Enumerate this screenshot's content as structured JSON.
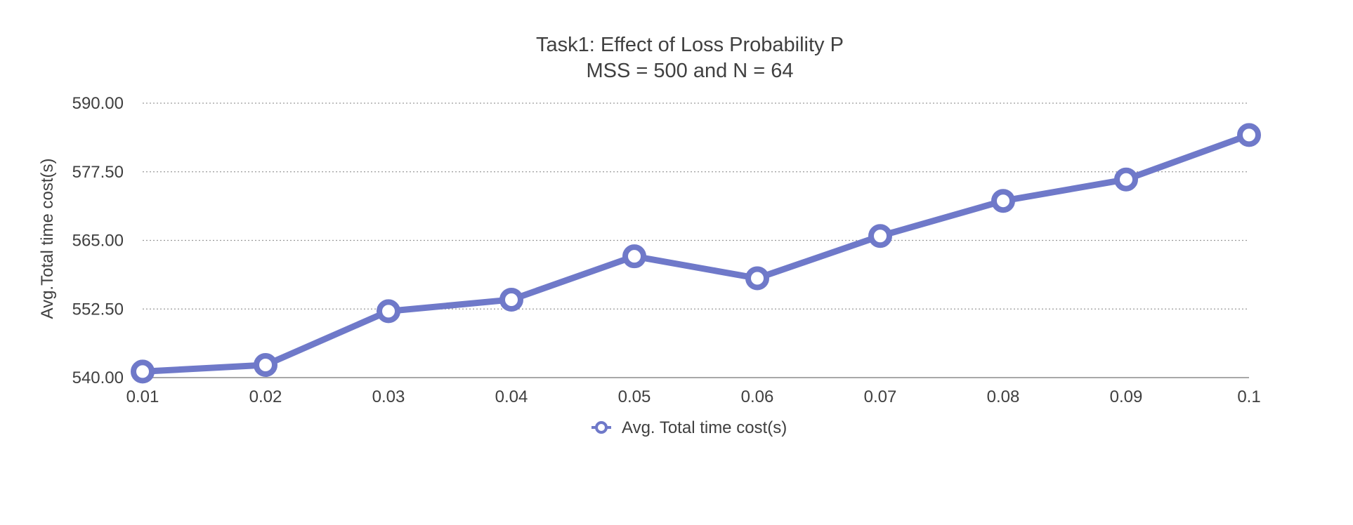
{
  "chart_data": {
    "type": "line",
    "title": "Task1:  Effect of Loss Probability  P",
    "subtitle": "MSS = 500 and N = 64",
    "xlabel": "",
    "ylabel": "Avg.Total time cost(s)",
    "x": [
      "0.01",
      "0.02",
      "0.03",
      "0.04",
      "0.05",
      "0.06",
      "0.07",
      "0.08",
      "0.09",
      "0.1"
    ],
    "ylim": [
      540,
      590
    ],
    "yticks": [
      "540.00",
      "552.50",
      "565.00",
      "577.50",
      "590.00"
    ],
    "grid": true,
    "legend_position": "bottom-center",
    "series": [
      {
        "name": "Avg. Total time cost(s)",
        "color": "#6f79c9",
        "values": [
          541.1,
          542.3,
          552.1,
          554.2,
          562.1,
          558.1,
          565.8,
          572.2,
          576.1,
          584.2
        ]
      }
    ]
  }
}
